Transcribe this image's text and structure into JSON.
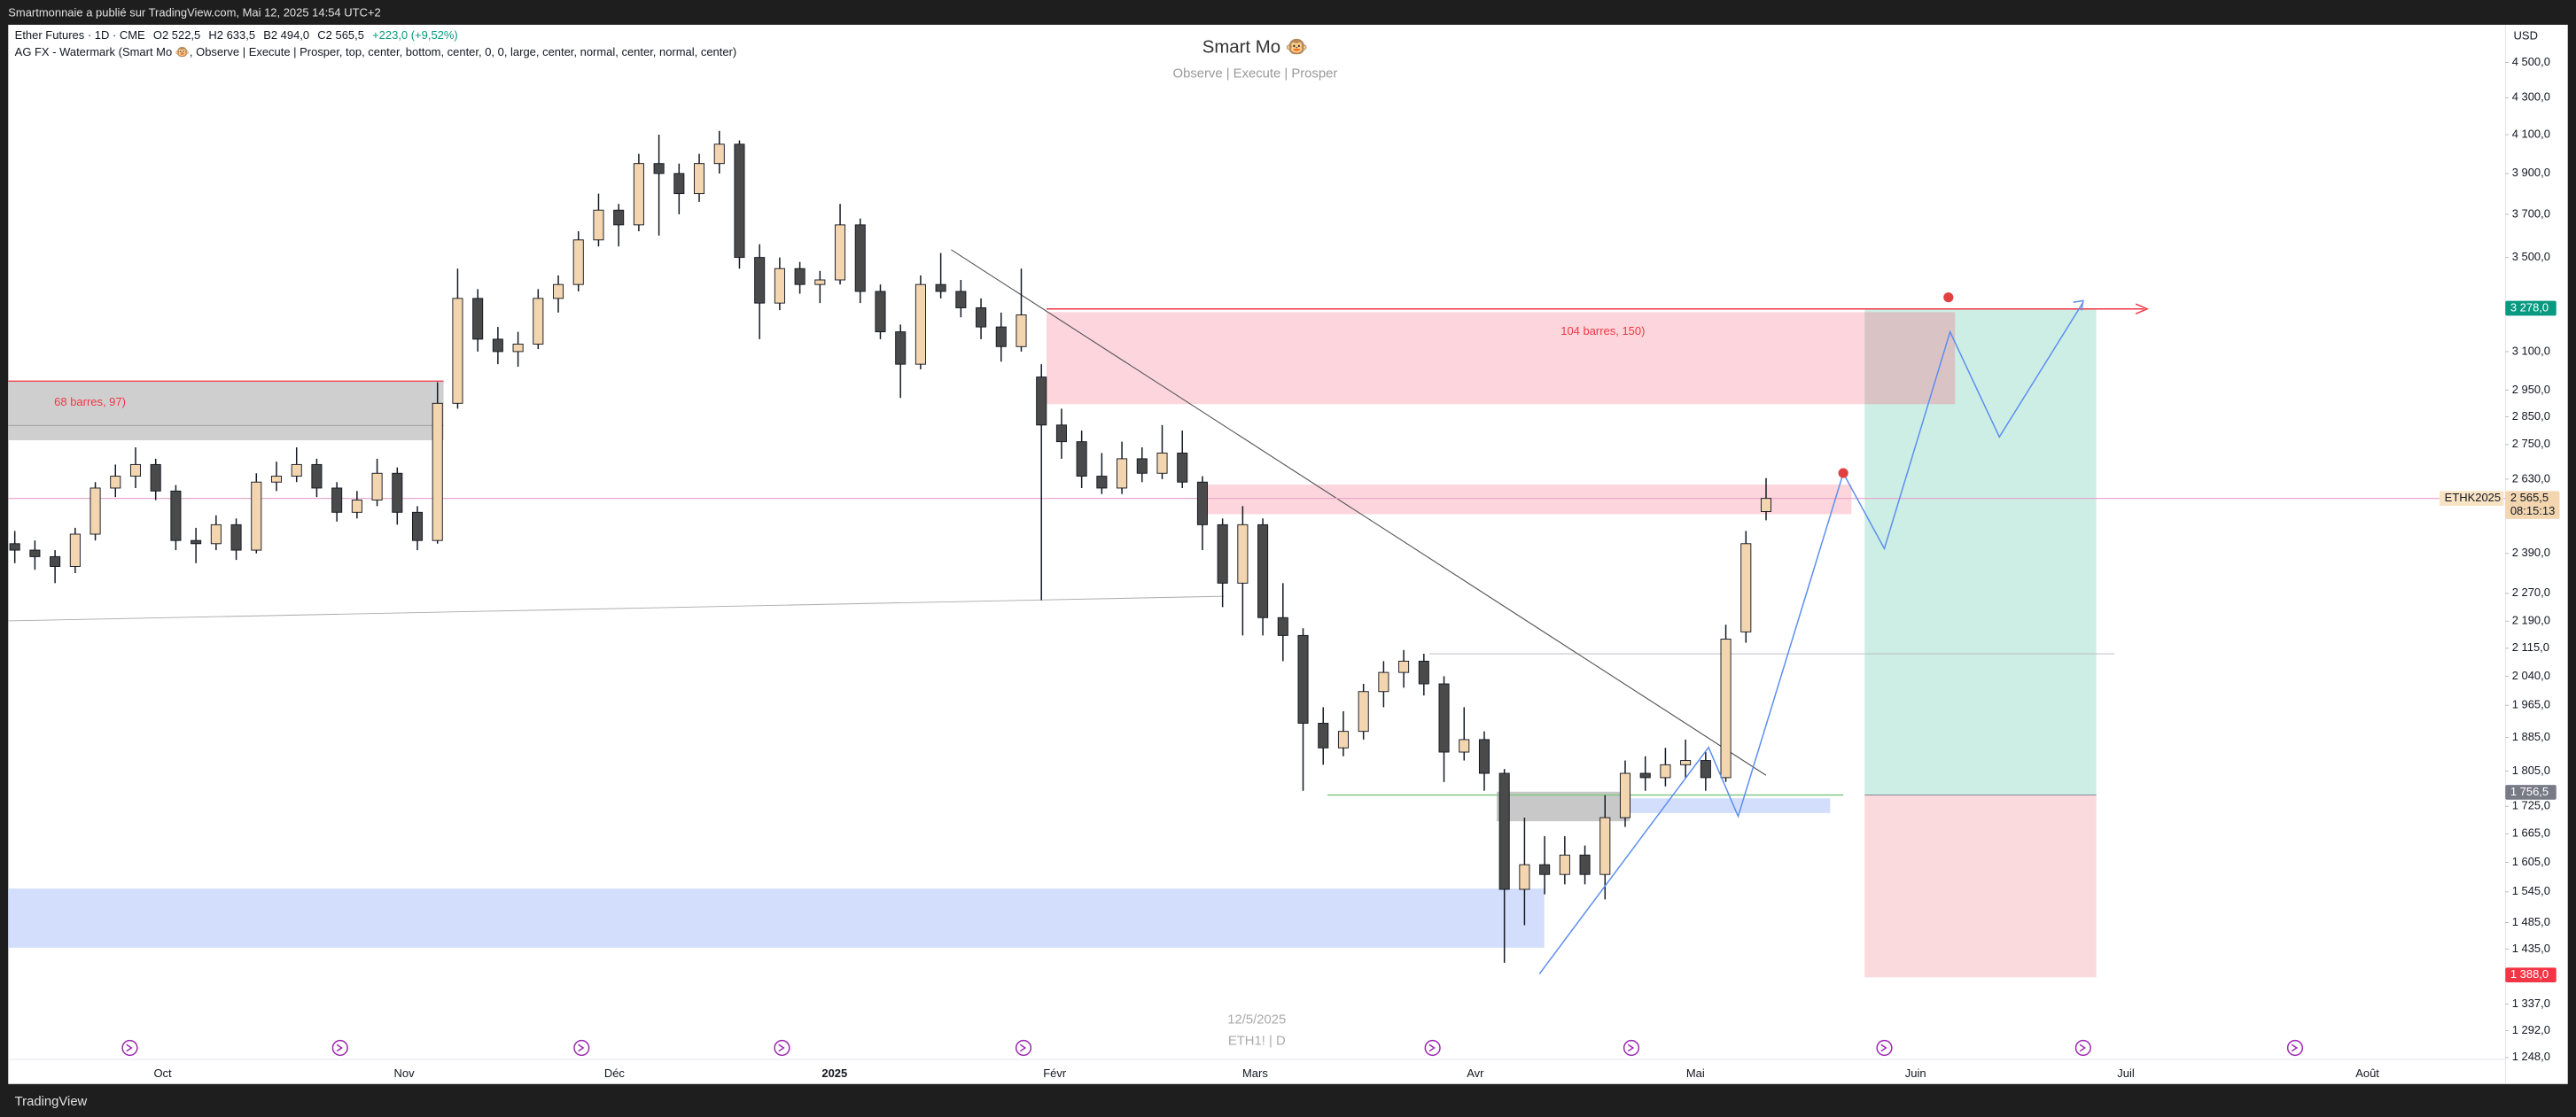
{
  "header": "Smartmonnaie a publié sur TradingView.com, Mai 12, 2025 14:54 UTC+2",
  "footer": "TradingView",
  "legend": {
    "symbol": "Ether Futures · 1D · CME",
    "open": "O2 522,5",
    "high": "H2 633,5",
    "low": "B2 494,0",
    "close": "C2 565,5",
    "change": "+223,0 (+9,52%)",
    "indicator": "AG FX - Watermark (Smart Mo 🐵, Observe | Execute | Prosper, top, center, bottom, center, 0, 0, large, center, normal, center, normal, center)"
  },
  "watermark": {
    "title": "Smart Mo 🐵",
    "subtitle": "Observe | Execute | Prosper",
    "date": "12/5/2025",
    "ticker": "ETH1! | D"
  },
  "annotations": [
    "68 barres, 97)",
    "104 barres, 150)"
  ],
  "chart_data": {
    "type": "candlestick",
    "currency": "USD",
    "log_scale": true,
    "up_color": "#f3d6b0",
    "down_color": "#4a4a4a",
    "ylim": [
      1206,
      4724
    ],
    "yticks": [
      {
        "value": 4500,
        "label": "4 500,0"
      },
      {
        "value": 4300,
        "label": "4 300,0"
      },
      {
        "value": 4100,
        "label": "4 100,0"
      },
      {
        "value": 3900,
        "label": "3 900,0"
      },
      {
        "value": 3700,
        "label": "3 700,0"
      },
      {
        "value": 3500,
        "label": "3 500,0"
      },
      {
        "value": 3100,
        "label": "3 100,0"
      },
      {
        "value": 2950,
        "label": "2 950,0"
      },
      {
        "value": 2850,
        "label": "2 850,0"
      },
      {
        "value": 2750,
        "label": "2 750,0"
      },
      {
        "value": 2630,
        "label": "2 630,0"
      },
      {
        "value": 2390,
        "label": "2 390,0"
      },
      {
        "value": 2270,
        "label": "2 270,0"
      },
      {
        "value": 2190,
        "label": "2 190,0"
      },
      {
        "value": 2115,
        "label": "2 115,0"
      },
      {
        "value": 2040,
        "label": "2 040,0"
      },
      {
        "value": 1965,
        "label": "1 965,0"
      },
      {
        "value": 1885,
        "label": "1 885,0"
      },
      {
        "value": 1805,
        "label": "1 805,0"
      },
      {
        "value": 1725,
        "label": "1 725,0"
      },
      {
        "value": 1665,
        "label": "1 665,0"
      },
      {
        "value": 1605,
        "label": "1 605,0"
      },
      {
        "value": 1545,
        "label": "1 545,0"
      },
      {
        "value": 1485,
        "label": "1 485,0"
      },
      {
        "value": 1435,
        "label": "1 435,0"
      },
      {
        "value": 1337,
        "label": "1 337,0"
      },
      {
        "value": 1292,
        "label": "1 292,0"
      },
      {
        "value": 1248,
        "label": "1 248,0"
      }
    ],
    "x_labels": [
      "Oct",
      "Nov",
      "Déc",
      "2025",
      "Févr",
      "Mars",
      "Avr",
      "Mai",
      "Juin",
      "Juil",
      "Août"
    ],
    "last": {
      "value": 2565.5,
      "label": "2 565,5",
      "countdown": "08:15:13",
      "symbol": "ETHK2025"
    },
    "price_tags": [
      {
        "value": 3278,
        "label": "3 278,0",
        "color": "#089981"
      },
      {
        "value": 1756.5,
        "label": "1 756,5",
        "color": "#787b86"
      },
      {
        "value": 1388,
        "label": "1 388,0",
        "color": "#f23645"
      }
    ],
    "ohlc": [
      [
        2420,
        2460,
        2360,
        2400
      ],
      [
        2400,
        2430,
        2340,
        2380
      ],
      [
        2380,
        2400,
        2300,
        2350
      ],
      [
        2350,
        2470,
        2330,
        2450
      ],
      [
        2450,
        2620,
        2430,
        2600
      ],
      [
        2600,
        2680,
        2570,
        2640
      ],
      [
        2640,
        2740,
        2600,
        2680
      ],
      [
        2680,
        2700,
        2560,
        2590
      ],
      [
        2590,
        2610,
        2400,
        2430
      ],
      [
        2430,
        2470,
        2360,
        2420
      ],
      [
        2420,
        2510,
        2400,
        2480
      ],
      [
        2480,
        2500,
        2370,
        2400
      ],
      [
        2400,
        2650,
        2390,
        2620
      ],
      [
        2620,
        2690,
        2590,
        2640
      ],
      [
        2640,
        2740,
        2620,
        2680
      ],
      [
        2680,
        2700,
        2570,
        2600
      ],
      [
        2600,
        2620,
        2490,
        2520
      ],
      [
        2520,
        2590,
        2500,
        2560
      ],
      [
        2560,
        2700,
        2540,
        2650
      ],
      [
        2650,
        2670,
        2480,
        2520
      ],
      [
        2520,
        2540,
        2400,
        2430
      ],
      [
        2430,
        2980,
        2420,
        2900
      ],
      [
        2900,
        3450,
        2880,
        3320
      ],
      [
        3320,
        3360,
        3100,
        3150
      ],
      [
        3150,
        3200,
        3050,
        3100
      ],
      [
        3100,
        3180,
        3040,
        3130
      ],
      [
        3130,
        3360,
        3110,
        3320
      ],
      [
        3320,
        3420,
        3260,
        3380
      ],
      [
        3380,
        3620,
        3350,
        3580
      ],
      [
        3580,
        3800,
        3550,
        3720
      ],
      [
        3720,
        3750,
        3550,
        3650
      ],
      [
        3650,
        4000,
        3620,
        3950
      ],
      [
        3950,
        4100,
        3600,
        3900
      ],
      [
        3900,
        3950,
        3700,
        3800
      ],
      [
        3800,
        4000,
        3760,
        3950
      ],
      [
        3950,
        4120,
        3900,
        4050
      ],
      [
        4050,
        4070,
        3450,
        3500
      ],
      [
        3500,
        3560,
        3150,
        3300
      ],
      [
        3300,
        3500,
        3270,
        3450
      ],
      [
        3450,
        3480,
        3340,
        3380
      ],
      [
        3380,
        3440,
        3300,
        3400
      ],
      [
        3400,
        3750,
        3380,
        3650
      ],
      [
        3650,
        3680,
        3300,
        3350
      ],
      [
        3350,
        3380,
        3150,
        3180
      ],
      [
        3180,
        3210,
        2920,
        3050
      ],
      [
        3050,
        3420,
        3030,
        3380
      ],
      [
        3380,
        3520,
        3320,
        3350
      ],
      [
        3350,
        3400,
        3240,
        3280
      ],
      [
        3280,
        3320,
        3150,
        3200
      ],
      [
        3200,
        3260,
        3060,
        3120
      ],
      [
        3120,
        3450,
        3100,
        3250
      ],
      [
        3000,
        3050,
        2250,
        2820
      ],
      [
        2820,
        2880,
        2700,
        2760
      ],
      [
        2760,
        2800,
        2600,
        2640
      ],
      [
        2640,
        2720,
        2580,
        2600
      ],
      [
        2600,
        2760,
        2580,
        2700
      ],
      [
        2700,
        2740,
        2620,
        2650
      ],
      [
        2650,
        2820,
        2630,
        2720
      ],
      [
        2720,
        2800,
        2600,
        2620
      ],
      [
        2620,
        2640,
        2400,
        2480
      ],
      [
        2480,
        2500,
        2230,
        2300
      ],
      [
        2300,
        2540,
        2150,
        2480
      ],
      [
        2480,
        2500,
        2150,
        2200
      ],
      [
        2200,
        2300,
        2080,
        2150
      ],
      [
        2150,
        2170,
        1760,
        1920
      ],
      [
        1920,
        1960,
        1820,
        1860
      ],
      [
        1860,
        1950,
        1840,
        1900
      ],
      [
        1900,
        2020,
        1880,
        2000
      ],
      [
        2000,
        2080,
        1960,
        2050
      ],
      [
        2050,
        2110,
        2010,
        2080
      ],
      [
        2080,
        2100,
        1990,
        2020
      ],
      [
        2020,
        2040,
        1780,
        1850
      ],
      [
        1850,
        1960,
        1830,
        1880
      ],
      [
        1880,
        1900,
        1760,
        1800
      ],
      [
        1800,
        1810,
        1410,
        1550
      ],
      [
        1550,
        1700,
        1480,
        1600
      ],
      [
        1600,
        1660,
        1540,
        1580
      ],
      [
        1580,
        1660,
        1560,
        1620
      ],
      [
        1620,
        1640,
        1560,
        1580
      ],
      [
        1580,
        1750,
        1530,
        1700
      ],
      [
        1700,
        1830,
        1680,
        1800
      ],
      [
        1800,
        1840,
        1760,
        1790
      ],
      [
        1790,
        1860,
        1770,
        1820
      ],
      [
        1820,
        1880,
        1790,
        1830
      ],
      [
        1830,
        1850,
        1760,
        1790
      ],
      [
        1790,
        2180,
        1780,
        2140
      ],
      [
        2160,
        2460,
        2130,
        2420
      ],
      [
        2522.5,
        2633.5,
        2494,
        2565.5
      ]
    ]
  }
}
